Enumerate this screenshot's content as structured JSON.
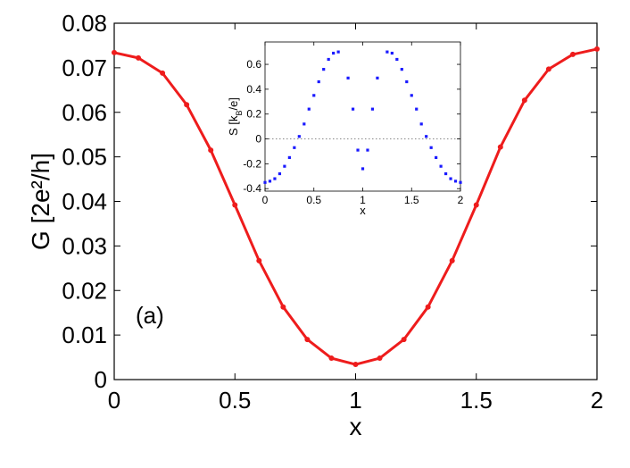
{
  "chart_data": [
    {
      "type": "line",
      "panel_label": "(a)",
      "xlabel": "x",
      "ylabel": "G [2e²/h]",
      "xlim": [
        0,
        2
      ],
      "ylim": [
        0,
        0.08
      ],
      "x_ticks": [
        "0",
        "0.5",
        "1",
        "1.5",
        "2"
      ],
      "y_ticks": [
        "0",
        "0.01",
        "0.02",
        "0.03",
        "0.04",
        "0.05",
        "0.06",
        "0.07",
        "0.08"
      ],
      "grid": false,
      "series": [
        {
          "color": "#ee1c1c",
          "marker": "dot",
          "x": [
            0,
            0.1,
            0.2,
            0.3,
            0.4,
            0.5,
            0.6,
            0.7,
            0.8,
            0.9,
            1.0,
            1.1,
            1.2,
            1.3,
            1.4,
            1.5,
            1.6,
            1.7,
            1.8,
            1.9,
            2.0
          ],
          "values": [
            0.0734,
            0.0722,
            0.0688,
            0.0617,
            0.0515,
            0.0392,
            0.0267,
            0.0163,
            0.009,
            0.0048,
            0.0034,
            0.0048,
            0.009,
            0.0163,
            0.0267,
            0.0392,
            0.0522,
            0.0627,
            0.0697,
            0.073,
            0.0742
          ]
        }
      ]
    },
    {
      "type": "scatter",
      "xlabel": "x",
      "ylabel": "S [k_B/e]",
      "xlim": [
        0,
        2
      ],
      "ylim": [
        -0.42,
        0.78
      ],
      "x_ticks": [
        "0",
        "0.5",
        "1",
        "1.5",
        "2"
      ],
      "y_ticks": [
        "-0.4",
        "-0.2",
        "0",
        "0.2",
        "0.4",
        "0.6"
      ],
      "reference_line": {
        "y": 0,
        "style": "dotted",
        "color": "#888888"
      },
      "grid": false,
      "series": [
        {
          "color": "#1a1aff",
          "marker": "square",
          "x": [
            0,
            0.05,
            0.1,
            0.15,
            0.2,
            0.25,
            0.3,
            0.35,
            0.4,
            0.45,
            0.5,
            0.55,
            0.6,
            0.65,
            0.7,
            0.75,
            0.85,
            0.9,
            0.95,
            1.0,
            1.05,
            1.1,
            1.15,
            1.25,
            1.3,
            1.35,
            1.4,
            1.45,
            1.5,
            1.55,
            1.6,
            1.65,
            1.7,
            1.75,
            1.8,
            1.85,
            1.9,
            1.95,
            2.0
          ],
          "values": [
            -0.35,
            -0.34,
            -0.32,
            -0.28,
            -0.22,
            -0.15,
            -0.07,
            0.02,
            0.12,
            0.24,
            0.35,
            0.46,
            0.56,
            0.64,
            0.69,
            0.7,
            0.49,
            0.24,
            -0.09,
            -0.24,
            -0.09,
            0.24,
            0.49,
            0.7,
            0.69,
            0.64,
            0.56,
            0.46,
            0.35,
            0.24,
            0.12,
            0.02,
            -0.07,
            -0.15,
            -0.22,
            -0.28,
            -0.32,
            -0.34,
            -0.35
          ]
        }
      ]
    }
  ]
}
